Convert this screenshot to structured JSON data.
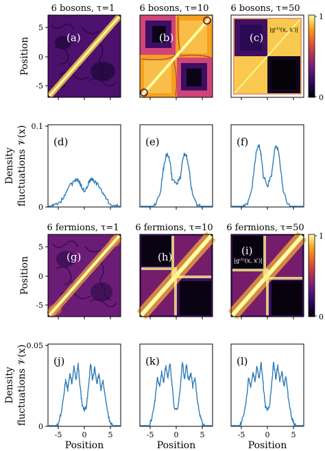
{
  "figure": {
    "heatmap_titles": [
      [
        "6 bosons, τ=1",
        "6 bosons, τ=10",
        "6 bosons, τ=50"
      ],
      [
        "6 fermions, τ=1",
        "6 fermions, τ=10",
        "6 fermions, τ=50"
      ]
    ],
    "panel_letters": [
      [
        "(a)",
        "(b)",
        "(c)"
      ],
      [
        "(d)",
        "(e)",
        "(f)"
      ],
      [
        "(g)",
        "(h)",
        "(i)"
      ],
      [
        "(j)",
        "(k)",
        "(l)"
      ]
    ],
    "heatmap_ylabel": "Position",
    "density_ylabel_line1": "Density",
    "density_ylabel_line2": "fluctuations 𝒱(x)",
    "xlabel": "Position",
    "correlation_label": "|g⁽¹⁾(x, x′)|",
    "colorbar_ticks": [
      "1",
      "0"
    ],
    "colormap": [
      "#000004",
      "#2c0b5c",
      "#6b1b7e",
      "#b2325a",
      "#e85f2a",
      "#f9a31c",
      "#fcffa4"
    ],
    "line_color": "#2e7ab5"
  },
  "chart_data": [
    {
      "type": "heatmap",
      "title": "6 bosons, τ=1",
      "panel": "(a)",
      "ylabel": "Position",
      "ylim": [
        -7,
        7
      ],
      "yticks": [
        5,
        0,
        -5
      ],
      "colorbar_range": [
        0,
        1
      ],
      "description_pattern": "bright diagonal, noisy off-diagonal"
    },
    {
      "type": "heatmap",
      "title": "6 bosons, τ=10",
      "panel": "(b)",
      "ylim": [
        -7,
        7
      ],
      "colorbar_range": [
        0,
        1
      ],
      "description_pattern": "two bright off-diagonal blocks forming"
    },
    {
      "type": "heatmap",
      "title": "6 bosons, τ=50",
      "panel": "(c)",
      "ylim": [
        -7,
        7
      ],
      "colorbar_range": [
        0,
        1
      ],
      "colorbar_ticks": [
        1,
        0
      ],
      "annotation": "|g⁽¹⁾(x, x′)|"
    },
    {
      "type": "line",
      "panel": "(d)",
      "ylabel": "Density fluctuations 𝒱(x)",
      "ylim": [
        0,
        0.1
      ],
      "yticks": [
        0,
        0.1
      ],
      "x": [
        -7,
        -6,
        -5,
        -4,
        -3,
        -2,
        -1.5,
        -1,
        -0.5,
        0,
        0.5,
        1,
        1.5,
        2,
        3,
        4,
        5,
        6,
        7
      ],
      "values": [
        0,
        0.001,
        0.003,
        0.012,
        0.024,
        0.031,
        0.034,
        0.032,
        0.024,
        0.02,
        0.024,
        0.032,
        0.034,
        0.031,
        0.024,
        0.012,
        0.003,
        0.001,
        0
      ]
    },
    {
      "type": "line",
      "panel": "(e)",
      "ylim": [
        0,
        0.1
      ],
      "x": [
        -7,
        -5,
        -4,
        -3,
        -2.5,
        -2,
        -1.6,
        -1.2,
        -0.8,
        0,
        0.8,
        1.2,
        1.6,
        2,
        2.5,
        3,
        4,
        5,
        7
      ],
      "values": [
        0,
        0,
        0.002,
        0.02,
        0.045,
        0.062,
        0.064,
        0.055,
        0.035,
        0.028,
        0.035,
        0.055,
        0.064,
        0.062,
        0.045,
        0.02,
        0.002,
        0,
        0
      ]
    },
    {
      "type": "line",
      "panel": "(f)",
      "ylim": [
        0,
        0.1
      ],
      "x": [
        -7,
        -5,
        -4,
        -3,
        -2.5,
        -2,
        -1.6,
        -1.2,
        -0.8,
        0,
        0.8,
        1.2,
        1.6,
        2,
        2.5,
        3,
        4,
        5,
        7
      ],
      "values": [
        0,
        0,
        0.002,
        0.02,
        0.05,
        0.072,
        0.075,
        0.062,
        0.038,
        0.025,
        0.038,
        0.062,
        0.075,
        0.072,
        0.05,
        0.02,
        0.002,
        0,
        0
      ]
    },
    {
      "type": "heatmap",
      "title": "6 fermions, τ=1",
      "panel": "(g)",
      "ylabel": "Position",
      "ylim": [
        -7,
        7
      ],
      "yticks": [
        5,
        0,
        -5
      ],
      "colorbar_range": [
        0,
        1
      ]
    },
    {
      "type": "heatmap",
      "title": "6 fermions, τ=10",
      "panel": "(h)",
      "ylim": [
        -7,
        7
      ],
      "colorbar_range": [
        0,
        1
      ]
    },
    {
      "type": "heatmap",
      "title": "6 fermions, τ=50",
      "panel": "(i)",
      "ylim": [
        -7,
        7
      ],
      "colorbar_range": [
        0,
        1
      ],
      "colorbar_ticks": [
        1,
        0
      ],
      "annotation": "|g⁽¹⁾(x, x′)|"
    },
    {
      "type": "line",
      "panel": "(j)",
      "ylabel": "Density fluctuations 𝒱(x)",
      "xlabel": "Position",
      "xlim": [
        -7,
        7
      ],
      "xticks": [
        -5,
        0,
        5
      ],
      "ylim": [
        0,
        0.05
      ],
      "yticks": [
        0,
        0.05
      ],
      "x": [
        -7,
        -5.5,
        -5,
        -4.5,
        -4,
        -3.6,
        -3.2,
        -2.8,
        -2.4,
        -2,
        -1.6,
        -1.2,
        -0.8,
        -0.4,
        0,
        0.4,
        0.8,
        1.2,
        1.6,
        2,
        2.4,
        2.8,
        3.2,
        3.6,
        4,
        4.5,
        5,
        5.5,
        7
      ],
      "values": [
        0,
        0,
        0.002,
        0.008,
        0.018,
        0.028,
        0.022,
        0.032,
        0.026,
        0.036,
        0.028,
        0.038,
        0.024,
        0.012,
        0.01,
        0.012,
        0.024,
        0.038,
        0.028,
        0.036,
        0.026,
        0.032,
        0.022,
        0.028,
        0.018,
        0.008,
        0.002,
        0,
        0
      ]
    },
    {
      "type": "line",
      "panel": "(k)",
      "xlabel": "Position",
      "xlim": [
        -7,
        7
      ],
      "xticks": [
        -5,
        0,
        5
      ],
      "ylim": [
        0,
        0.05
      ],
      "x": [
        -7,
        -5.5,
        -5,
        -4.5,
        -4,
        -3.6,
        -3.2,
        -2.8,
        -2.4,
        -2,
        -1.6,
        -1.2,
        -0.8,
        -0.4,
        0,
        0.4,
        0.8,
        1.2,
        1.6,
        2,
        2.4,
        2.8,
        3.2,
        3.6,
        4,
        4.5,
        5,
        5.5,
        7
      ],
      "values": [
        0,
        0,
        0.002,
        0.008,
        0.018,
        0.03,
        0.024,
        0.033,
        0.027,
        0.037,
        0.029,
        0.039,
        0.025,
        0.012,
        0.01,
        0.012,
        0.025,
        0.039,
        0.029,
        0.037,
        0.027,
        0.033,
        0.024,
        0.03,
        0.018,
        0.008,
        0.002,
        0,
        0
      ]
    },
    {
      "type": "line",
      "panel": "(l)",
      "xlabel": "Position",
      "xlim": [
        -7,
        7
      ],
      "xticks": [
        -5,
        0,
        5
      ],
      "ylim": [
        0,
        0.05
      ],
      "x": [
        -7,
        -5.5,
        -5,
        -4.5,
        -4,
        -3.6,
        -3.2,
        -2.8,
        -2.4,
        -2,
        -1.6,
        -1.2,
        -0.8,
        -0.4,
        0,
        0.4,
        0.8,
        1.2,
        1.6,
        2,
        2.4,
        2.8,
        3.2,
        3.6,
        4,
        4.5,
        5,
        5.5,
        7
      ],
      "values": [
        0,
        0,
        0.002,
        0.008,
        0.018,
        0.03,
        0.024,
        0.033,
        0.027,
        0.037,
        0.029,
        0.039,
        0.025,
        0.012,
        0.01,
        0.012,
        0.025,
        0.039,
        0.029,
        0.037,
        0.027,
        0.033,
        0.024,
        0.03,
        0.018,
        0.008,
        0.002,
        0,
        0
      ]
    }
  ]
}
